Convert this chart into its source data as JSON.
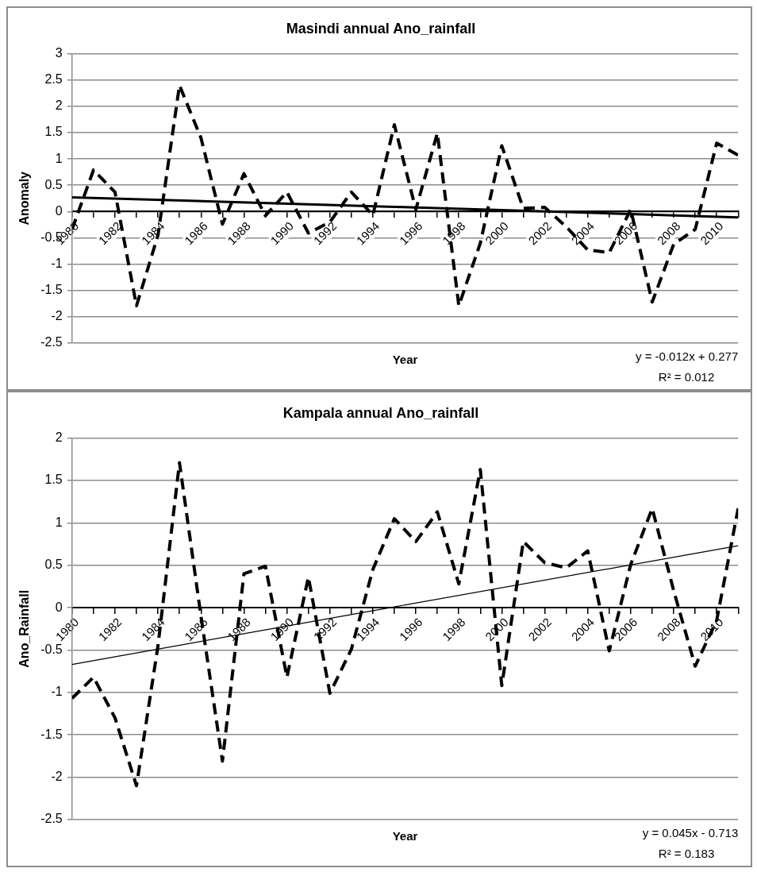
{
  "chart_data": [
    {
      "type": "line",
      "title": "Masindi annual Ano_rainfall",
      "xlabel": "Year",
      "ylabel": "Anomaly",
      "annotations": [
        "y = -0.012x + 0.277",
        "R² = 0.012"
      ],
      "x": [
        1980,
        1981,
        1982,
        1983,
        1984,
        1985,
        1986,
        1987,
        1988,
        1989,
        1990,
        1991,
        1992,
        1993,
        1994,
        1995,
        1996,
        1997,
        1998,
        1999,
        2000,
        2001,
        2002,
        2003,
        2004,
        2005,
        2006,
        2007,
        2008,
        2009,
        2010,
        2011
      ],
      "xlim": [
        1980,
        2011
      ],
      "xticks": [
        1980,
        {
          "value": 1981,
          "label": null
        },
        1982,
        {
          "value": 1983,
          "label": null
        },
        1984,
        {
          "value": 1985,
          "label": null
        },
        1986,
        {
          "value": 1987,
          "label": null
        },
        1988,
        {
          "value": 1989,
          "label": null
        },
        1990,
        {
          "value": 1991,
          "label": null
        },
        1992,
        {
          "value": 1993,
          "label": null
        },
        1994,
        {
          "value": 1995,
          "label": null
        },
        1996,
        {
          "value": 1997,
          "label": null
        },
        1998,
        {
          "value": 1999,
          "label": null
        },
        2000,
        {
          "value": 2001,
          "label": null
        },
        2002,
        {
          "value": 2003,
          "label": null
        },
        2004,
        {
          "value": 2005,
          "label": null
        },
        2006,
        {
          "value": 2007,
          "label": null
        },
        2008,
        {
          "value": 2009,
          "label": null
        },
        2010,
        {
          "value": 2011,
          "label": null
        }
      ],
      "ylim": [
        -2.5,
        3
      ],
      "yticks": [
        -2.5,
        -2,
        -1.5,
        -1,
        -0.5,
        0,
        0.5,
        1,
        1.5,
        2,
        2.5,
        3
      ],
      "grid": "y",
      "marker": "none",
      "series": [
        {
          "type": "line",
          "color": "#000000",
          "line_style": "dashed",
          "values": [
            -0.34,
            0.79,
            0.37,
            -1.79,
            -0.45,
            2.4,
            1.4,
            -0.24,
            0.72,
            -0.08,
            0.37,
            -0.41,
            -0.2,
            0.37,
            -0.07,
            1.65,
            0.04,
            1.49,
            -1.79,
            -0.6,
            1.25,
            0.06,
            0.08,
            -0.29,
            -0.73,
            -0.78,
            0.04,
            -1.72,
            -0.62,
            -0.34,
            1.3,
            1.07
          ]
        },
        {
          "type": "line",
          "color": "#000000",
          "line_style": "solid",
          "x": [
            1980,
            1995,
            2011
          ],
          "values": [
            0.27,
            0.09,
            -0.11
          ]
        }
      ]
    },
    {
      "type": "line",
      "title": "Kampala annual Ano_rainfall",
      "xlabel": "Year",
      "ylabel": "Ano_Rainfall",
      "annotations": [
        "y = 0.045x - 0.713",
        "R² = 0.183"
      ],
      "x": [
        1980,
        1981,
        1982,
        1983,
        1984,
        1985,
        1986,
        1987,
        1988,
        1989,
        1990,
        1991,
        1992,
        1993,
        1994,
        1995,
        1996,
        1997,
        1998,
        1999,
        2000,
        2001,
        2002,
        2003,
        2004,
        2005,
        2006,
        2007,
        2008,
        2009,
        2010,
        2011
      ],
      "xlim": [
        1980,
        2011
      ],
      "xticks": [
        1980,
        {
          "value": 1981,
          "label": null
        },
        1982,
        {
          "value": 1983,
          "label": null
        },
        1984,
        {
          "value": 1985,
          "label": null
        },
        1986,
        {
          "value": 1987,
          "label": null
        },
        1988,
        {
          "value": 1989,
          "label": null
        },
        1990,
        {
          "value": 1991,
          "label": null
        },
        1992,
        {
          "value": 1993,
          "label": null
        },
        1994,
        {
          "value": 1995,
          "label": null
        },
        1996,
        {
          "value": 1997,
          "label": null
        },
        1998,
        {
          "value": 1999,
          "label": null
        },
        2000,
        {
          "value": 2001,
          "label": null
        },
        2002,
        {
          "value": 2003,
          "label": null
        },
        2004,
        {
          "value": 2005,
          "label": null
        },
        2006,
        {
          "value": 2007,
          "label": null
        },
        2008,
        {
          "value": 2009,
          "label": null
        },
        2010,
        {
          "value": 2011,
          "label": null
        }
      ],
      "ylim": [
        -2.5,
        2
      ],
      "yticks": [
        -2.5,
        -2,
        -1.5,
        -1,
        -0.5,
        0,
        0.5,
        1,
        1.5,
        2
      ],
      "grid": "y",
      "marker": "none",
      "series": [
        {
          "type": "line",
          "color": "#000000",
          "line_style": "dashed",
          "values": [
            -1.07,
            -0.82,
            -1.3,
            -2.1,
            -0.45,
            1.71,
            -0.1,
            -1.81,
            0.4,
            0.49,
            -0.82,
            0.36,
            -1.01,
            -0.49,
            0.45,
            1.05,
            0.78,
            1.13,
            0.28,
            1.63,
            -0.92,
            0.78,
            0.53,
            0.47,
            0.67,
            -0.51,
            0.51,
            1.17,
            0.2,
            -0.69,
            -0.15,
            1.17
          ]
        },
        {
          "type": "line",
          "color": "#000000",
          "line_style": "solid",
          "x": [
            1980,
            1995,
            2011
          ],
          "values": [
            -0.67,
            0.01,
            0.73
          ]
        }
      ]
    }
  ]
}
